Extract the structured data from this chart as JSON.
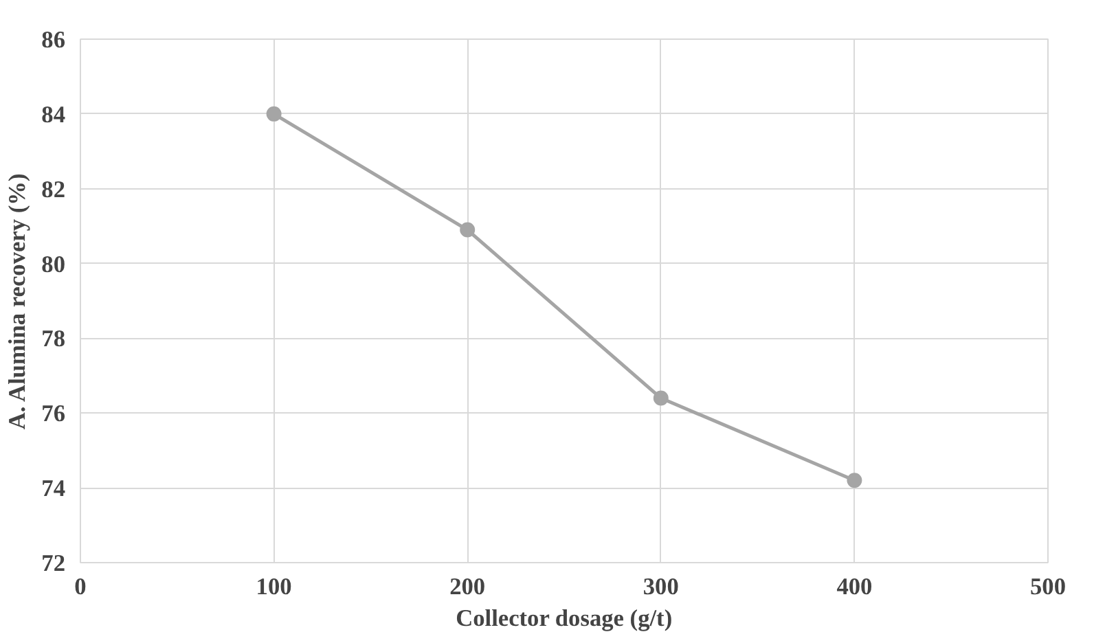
{
  "chart_data": {
    "type": "line",
    "xlabel": "Collector dosage (g/t)",
    "ylabel": "A. Alumina recovery (%)",
    "x": [
      100,
      200,
      300,
      400
    ],
    "series": [
      {
        "color": "#a5a5a5",
        "values": [
          84.0,
          80.9,
          76.4,
          74.2
        ]
      }
    ],
    "xlim": [
      0,
      500
    ],
    "xticks": [
      0,
      100,
      200,
      300,
      400,
      500
    ],
    "ylim": [
      72,
      86
    ],
    "yticks": [
      72,
      74,
      76,
      78,
      80,
      82,
      84,
      86
    ],
    "grid": true,
    "marker": "circle",
    "line_style": "solid"
  }
}
